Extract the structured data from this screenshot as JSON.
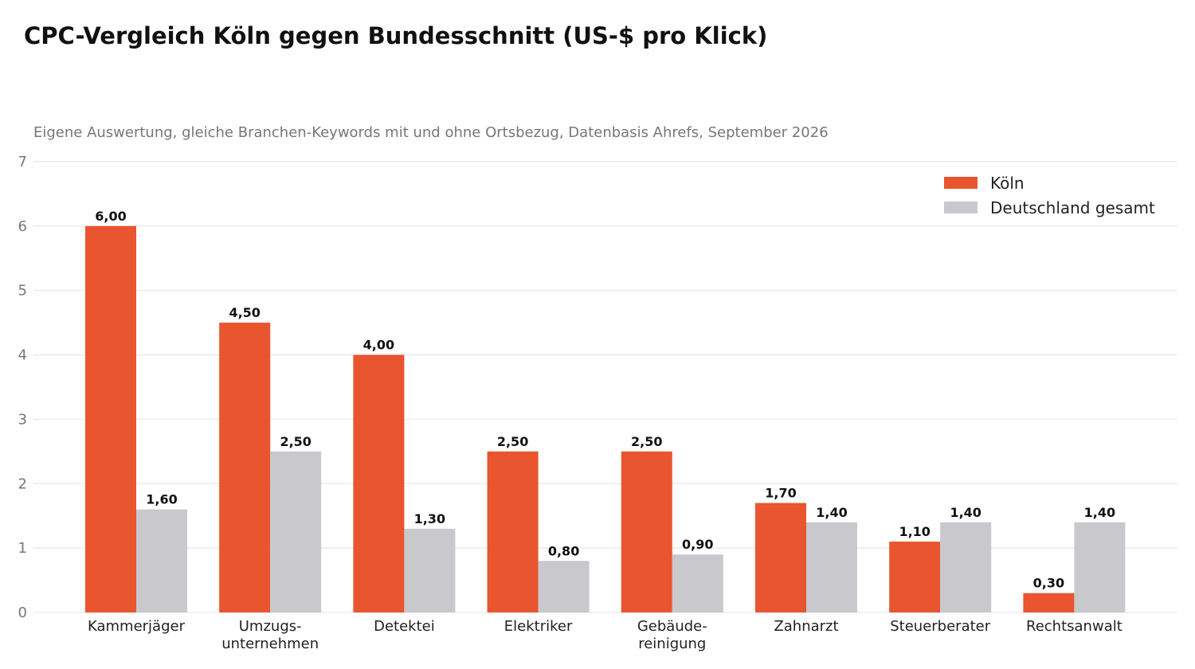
{
  "chart_data": {
    "type": "bar",
    "title": "CPC-Vergleich Köln gegen Bundesschnitt (US-$ pro Klick)",
    "subtitle": "Eigene Auswertung, gleiche Branchen-Keywords mit und ohne Ortsbezug, Datenbasis Ahrefs, September 2026",
    "categories": [
      [
        "Kammerjäger"
      ],
      [
        "Umzugs-",
        "unternehmen"
      ],
      [
        "Detektei"
      ],
      [
        "Elektriker"
      ],
      [
        "Gebäude-",
        "reinigung"
      ],
      [
        "Zahnarzt"
      ],
      [
        "Steuerberater"
      ],
      [
        "Rechtsanwalt"
      ]
    ],
    "series": [
      {
        "name": "Köln",
        "color": "#e8552e",
        "values": [
          6.0,
          4.5,
          4.0,
          2.5,
          2.5,
          1.7,
          1.1,
          0.3
        ],
        "labels": [
          "6,00",
          "4,50",
          "4,00",
          "2,50",
          "2,50",
          "1,70",
          "1,10",
          "0,30"
        ]
      },
      {
        "name": "Deutschland gesamt",
        "color": "#c9c8cd",
        "values": [
          1.6,
          2.5,
          1.3,
          0.8,
          0.9,
          1.4,
          1.4,
          1.4
        ],
        "labels": [
          "1,60",
          "2,50",
          "1,30",
          "0,80",
          "0,90",
          "1,40",
          "1,40",
          "1,40"
        ]
      }
    ],
    "ylim": [
      0,
      7
    ],
    "yticks": [
      "0",
      "1",
      "2",
      "3",
      "4",
      "5",
      "6",
      "7"
    ],
    "xlabel": "",
    "ylabel": "",
    "grid": true,
    "legend_position": "top-right"
  }
}
